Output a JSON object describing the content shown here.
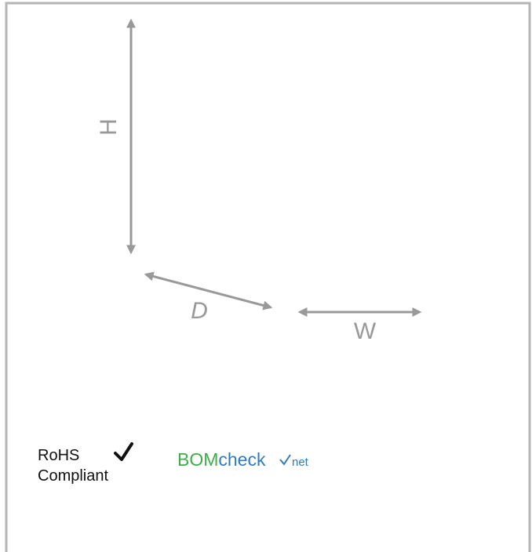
{
  "diagram": {
    "dimensions": {
      "height": "H",
      "depth": "D",
      "width": "W"
    },
    "rohs": {
      "line1": "RoHS",
      "line2": "Compliant"
    },
    "logo": {
      "part1": "BOM",
      "part2": "check",
      "suffix": "net"
    }
  }
}
